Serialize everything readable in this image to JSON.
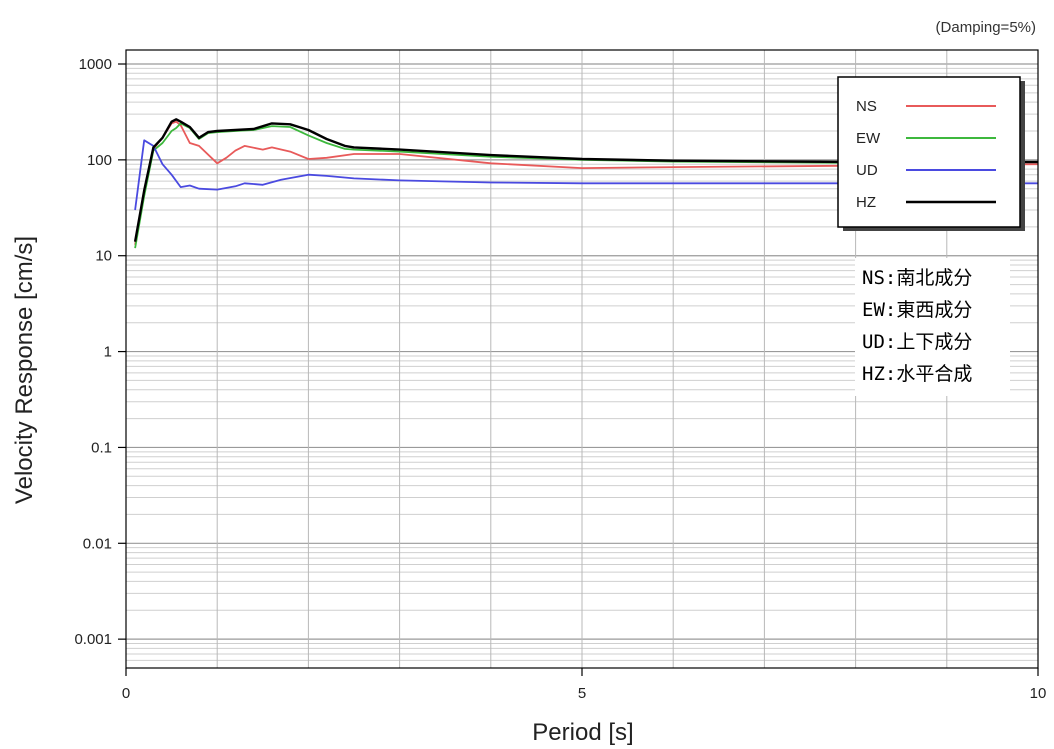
{
  "chart_data": {
    "type": "line",
    "title": "",
    "note": "(Damping=5%)",
    "xlabel": "Period [s]",
    "ylabel": "Velocity Response [cm/s]",
    "xlim": [
      0,
      10
    ],
    "ylim": [
      0.0005,
      1400
    ],
    "yscale": "log",
    "x_ticks": [
      0,
      5,
      10
    ],
    "y_ticks": [
      {
        "value": 0.001,
        "label": "0.001"
      },
      {
        "value": 0.01,
        "label": "0.01"
      },
      {
        "value": 0.1,
        "label": "0.1"
      },
      {
        "value": 1,
        "label": "1"
      },
      {
        "value": 10,
        "label": "10"
      },
      {
        "value": 100,
        "label": "100"
      },
      {
        "value": 1000,
        "label": "1000"
      }
    ],
    "grid": true,
    "legend_position": "top-right",
    "series": [
      {
        "name": "NS",
        "color": "#e85a5a",
        "x": [
          0.1,
          0.2,
          0.3,
          0.4,
          0.5,
          0.55,
          0.6,
          0.7,
          0.8,
          1.0,
          1.1,
          1.2,
          1.3,
          1.5,
          1.6,
          1.8,
          2.0,
          2.2,
          2.5,
          3.0,
          4.0,
          5.0,
          6.0,
          8.0,
          10.0
        ],
        "y": [
          13,
          45,
          130,
          170,
          240,
          250,
          230,
          150,
          140,
          92,
          105,
          125,
          140,
          128,
          135,
          122,
          102,
          105,
          115,
          115,
          92,
          82,
          84,
          87,
          90
        ]
      },
      {
        "name": "EW",
        "color": "#3db83d",
        "x": [
          0.1,
          0.2,
          0.3,
          0.4,
          0.5,
          0.55,
          0.6,
          0.7,
          0.8,
          0.9,
          1.0,
          1.2,
          1.4,
          1.6,
          1.8,
          2.0,
          2.2,
          2.4,
          2.5,
          3.0,
          4.0,
          5.0,
          6.0,
          8.0,
          10.0
        ],
        "y": [
          12,
          42,
          125,
          150,
          200,
          215,
          240,
          215,
          165,
          190,
          195,
          200,
          205,
          225,
          220,
          180,
          150,
          130,
          128,
          122,
          108,
          100,
          96,
          93,
          95
        ]
      },
      {
        "name": "UD",
        "color": "#4a4ae0",
        "x": [
          0.1,
          0.2,
          0.3,
          0.4,
          0.5,
          0.6,
          0.7,
          0.8,
          1.0,
          1.2,
          1.3,
          1.5,
          1.7,
          2.0,
          2.2,
          2.5,
          3.0,
          4.0,
          5.0,
          6.0,
          8.0,
          10.0
        ],
        "y": [
          30,
          160,
          140,
          90,
          70,
          52,
          54,
          50,
          49,
          53,
          57,
          55,
          62,
          70,
          68,
          64,
          61,
          58,
          57,
          57,
          57,
          57
        ]
      },
      {
        "name": "HZ",
        "color": "#000000",
        "x": [
          0.1,
          0.2,
          0.3,
          0.4,
          0.5,
          0.55,
          0.6,
          0.7,
          0.8,
          0.9,
          1.0,
          1.2,
          1.4,
          1.6,
          1.8,
          2.0,
          2.2,
          2.4,
          2.5,
          3.0,
          4.0,
          5.0,
          6.0,
          8.0,
          10.0
        ],
        "y": [
          14,
          48,
          135,
          170,
          250,
          265,
          250,
          220,
          170,
          195,
          200,
          205,
          210,
          240,
          235,
          205,
          165,
          140,
          135,
          128,
          112,
          102,
          98,
          95,
          95
        ]
      }
    ],
    "annotations": [
      "NS:南北成分",
      "EW:東西成分",
      "UD:上下成分",
      "HZ:水平合成"
    ]
  }
}
